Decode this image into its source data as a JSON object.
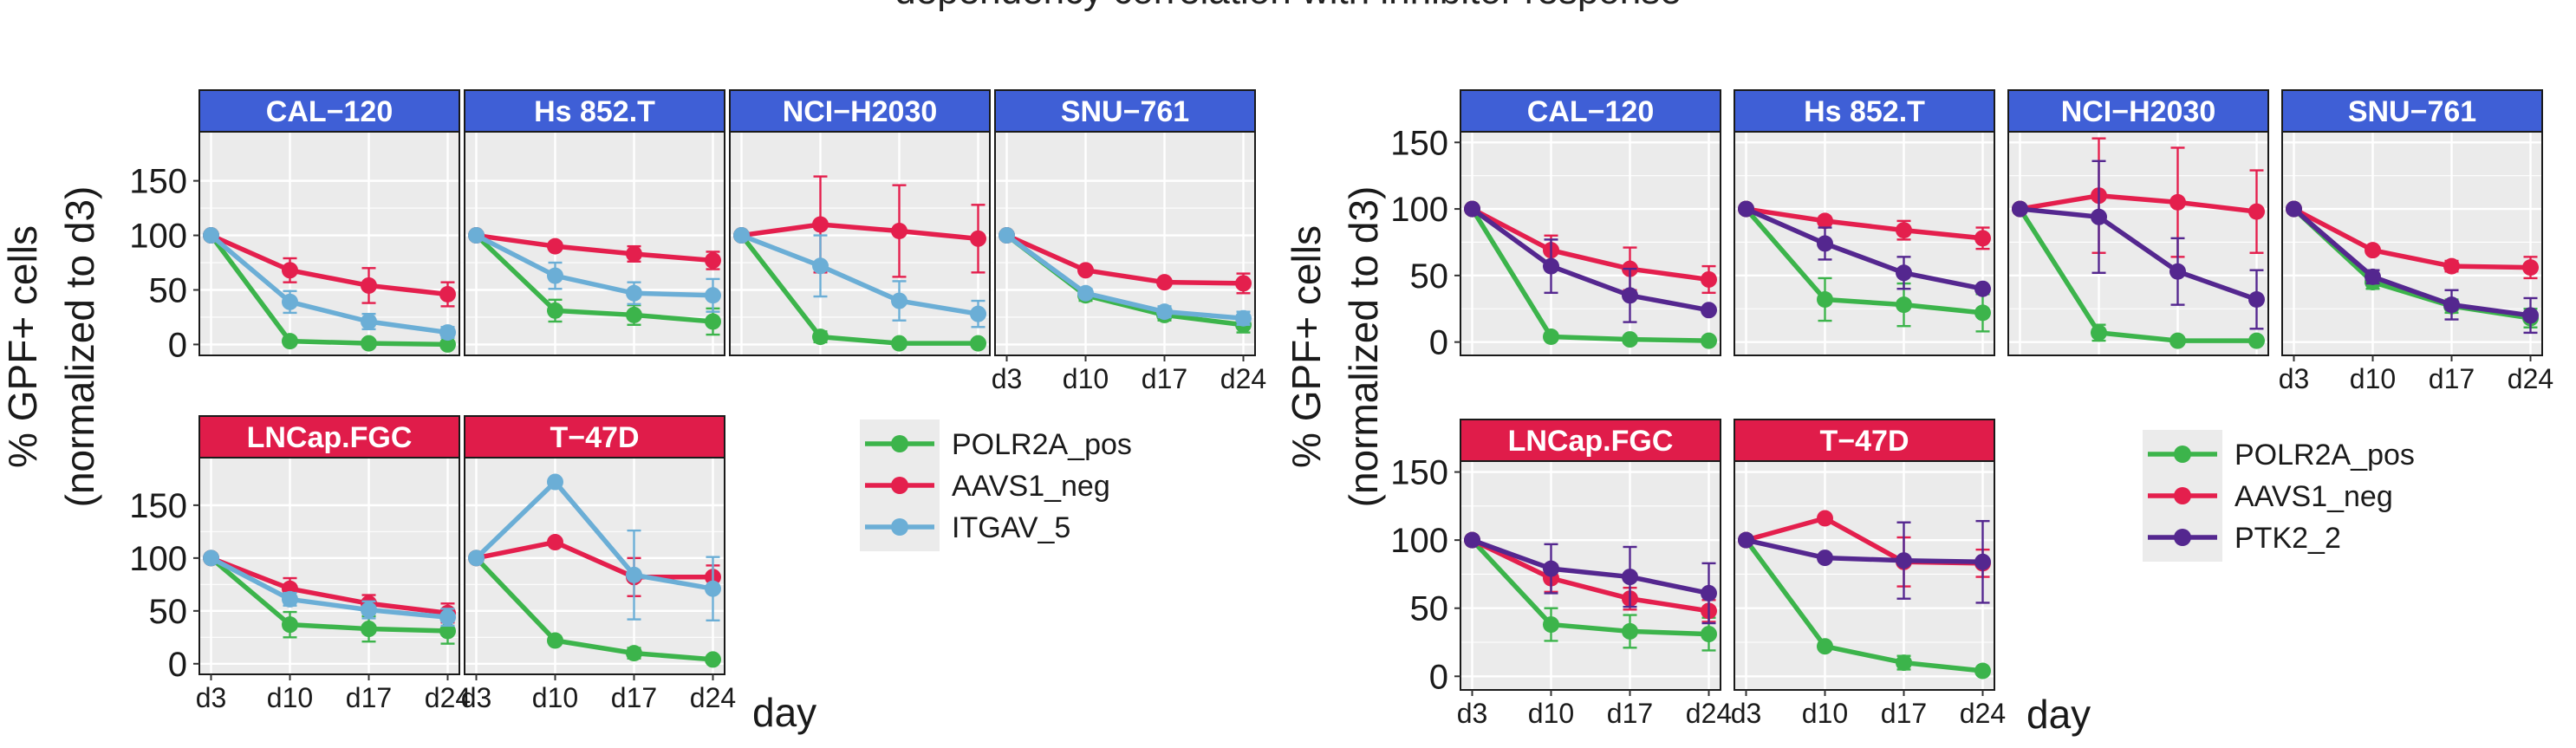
{
  "figure_title": "dependency correlation with inhibitor response",
  "colors": {
    "strip_top": "#3f5fd6",
    "strip_bottom": "#e01c4a",
    "panel_bg": "#ebebeb",
    "grid": "#ffffff",
    "POLR2A_pos": "#3cb44b",
    "AAVS1_neg": "#e41f4d",
    "ITGAV_5": "#6baed6",
    "PTK2_2": "#54278f"
  },
  "chart_data": [
    {
      "type": "line",
      "id": "left",
      "ylabel": [
        "% GPF+ cells",
        "(normalized to d3)"
      ],
      "xlabel": "day",
      "categories": [
        "d3",
        "d10",
        "d17",
        "d24"
      ],
      "y_ticks": [
        0,
        50,
        100,
        150
      ],
      "ylim": [
        -10,
        195
      ],
      "legend": {
        "placement": "right",
        "items": [
          "POLR2A_pos",
          "AAVS1_neg",
          "ITGAV_5"
        ]
      },
      "panels": [
        {
          "strip": "CAL−120",
          "row": 0,
          "series": [
            {
              "name": "POLR2A_pos",
              "values": [
                100,
                3,
                1,
                0
              ],
              "err": [
                0,
                0,
                0,
                0
              ]
            },
            {
              "name": "AAVS1_neg",
              "values": [
                100,
                68,
                54,
                46
              ],
              "err": [
                0,
                11,
                16,
                11
              ]
            },
            {
              "name": "ITGAV_5",
              "values": [
                100,
                39,
                21,
                11
              ],
              "err": [
                0,
                10,
                7,
                5
              ]
            }
          ]
        },
        {
          "strip": "Hs 852.T",
          "row": 0,
          "series": [
            {
              "name": "POLR2A_pos",
              "values": [
                100,
                31,
                27,
                21
              ],
              "err": [
                0,
                10,
                9,
                12
              ]
            },
            {
              "name": "AAVS1_neg",
              "values": [
                100,
                90,
                83,
                77
              ],
              "err": [
                0,
                0,
                7,
                8
              ]
            },
            {
              "name": "ITGAV_5",
              "values": [
                100,
                63,
                47,
                45
              ],
              "err": [
                0,
                12,
                10,
                15
              ]
            }
          ]
        },
        {
          "strip": "NCI−H2030",
          "row": 0,
          "series": [
            {
              "name": "POLR2A_pos",
              "values": [
                100,
                7,
                1,
                1
              ],
              "err": [
                0,
                5,
                0,
                0
              ]
            },
            {
              "name": "AAVS1_neg",
              "values": [
                100,
                110,
                104,
                97
              ],
              "err": [
                0,
                44,
                42,
                31
              ]
            },
            {
              "name": "ITGAV_5",
              "values": [
                100,
                72,
                40,
                28
              ],
              "err": [
                0,
                28,
                18,
                12
              ]
            }
          ]
        },
        {
          "strip": "SNU−761",
          "row": 0,
          "series": [
            {
              "name": "POLR2A_pos",
              "values": [
                100,
                45,
                27,
                18
              ],
              "err": [
                0,
                5,
                5,
                7
              ]
            },
            {
              "name": "AAVS1_neg",
              "values": [
                100,
                68,
                57,
                56
              ],
              "err": [
                0,
                0,
                3,
                9
              ]
            },
            {
              "name": "ITGAV_5",
              "values": [
                100,
                47,
                30,
                24
              ],
              "err": [
                0,
                4,
                5,
                6
              ]
            }
          ]
        },
        {
          "strip": "LNCap.FGC",
          "row": 1,
          "series": [
            {
              "name": "POLR2A_pos",
              "values": [
                100,
                37,
                33,
                31
              ],
              "err": [
                0,
                12,
                12,
                12
              ]
            },
            {
              "name": "AAVS1_neg",
              "values": [
                100,
                71,
                57,
                48
              ],
              "err": [
                0,
                10,
                8,
                9
              ]
            },
            {
              "name": "ITGAV_5",
              "values": [
                100,
                61,
                51,
                44
              ],
              "err": [
                0,
                6,
                8,
                8
              ]
            }
          ]
        },
        {
          "strip": "T−47D",
          "row": 1,
          "series": [
            {
              "name": "POLR2A_pos",
              "values": [
                100,
                22,
                10,
                4
              ],
              "err": [
                0,
                0,
                5,
                0
              ]
            },
            {
              "name": "AAVS1_neg",
              "values": [
                100,
                115,
                82,
                82
              ],
              "err": [
                0,
                0,
                18,
                11
              ]
            },
            {
              "name": "ITGAV_5",
              "values": [
                100,
                172,
                84,
                71
              ],
              "err": [
                0,
                0,
                42,
                30
              ]
            }
          ]
        }
      ]
    },
    {
      "type": "line",
      "id": "right",
      "ylabel": [
        "% GPF+ cells",
        "(normalized to d3)"
      ],
      "xlabel": "day",
      "categories": [
        "d3",
        "d10",
        "d17",
        "d24"
      ],
      "y_ticks": [
        0,
        50,
        100,
        150
      ],
      "ylim": [
        -10,
        158
      ],
      "legend": {
        "placement": "right",
        "items": [
          "POLR2A_pos",
          "AAVS1_neg",
          "PTK2_2"
        ]
      },
      "panels": [
        {
          "strip": "CAL−120",
          "row": 0,
          "series": [
            {
              "name": "POLR2A_pos",
              "values": [
                100,
                4,
                2,
                1
              ],
              "err": [
                0,
                0,
                0,
                0
              ]
            },
            {
              "name": "AAVS1_neg",
              "values": [
                100,
                69,
                55,
                47
              ],
              "err": [
                0,
                11,
                16,
                10
              ]
            },
            {
              "name": "PTK2_2",
              "values": [
                100,
                57,
                35,
                24
              ],
              "err": [
                0,
                20,
                20,
                0
              ]
            }
          ]
        },
        {
          "strip": "Hs 852.T",
          "row": 0,
          "series": [
            {
              "name": "POLR2A_pos",
              "values": [
                100,
                32,
                28,
                22
              ],
              "err": [
                0,
                16,
                16,
                14
              ]
            },
            {
              "name": "AAVS1_neg",
              "values": [
                100,
                91,
                84,
                78
              ],
              "err": [
                0,
                0,
                7,
                8
              ]
            },
            {
              "name": "PTK2_2",
              "values": [
                100,
                74,
                52,
                40
              ],
              "err": [
                0,
                12,
                12,
                0
              ]
            }
          ]
        },
        {
          "strip": "NCI−H2030",
          "row": 0,
          "series": [
            {
              "name": "POLR2A_pos",
              "values": [
                100,
                7,
                1,
                1
              ],
              "err": [
                0,
                6,
                0,
                0
              ]
            },
            {
              "name": "AAVS1_neg",
              "values": [
                100,
                110,
                105,
                98
              ],
              "err": [
                0,
                43,
                41,
                31
              ]
            },
            {
              "name": "PTK2_2",
              "values": [
                100,
                94,
                53,
                32
              ],
              "err": [
                0,
                42,
                25,
                22
              ]
            }
          ]
        },
        {
          "strip": "SNU−761",
          "row": 0,
          "series": [
            {
              "name": "POLR2A_pos",
              "values": [
                100,
                45,
                27,
                18
              ],
              "err": [
                0,
                5,
                5,
                7
              ]
            },
            {
              "name": "AAVS1_neg",
              "values": [
                100,
                69,
                57,
                56
              ],
              "err": [
                0,
                0,
                4,
                8
              ]
            },
            {
              "name": "PTK2_2",
              "values": [
                100,
                49,
                28,
                20
              ],
              "err": [
                0,
                5,
                11,
                13
              ]
            }
          ]
        },
        {
          "strip": "LNCap.FGC",
          "row": 1,
          "series": [
            {
              "name": "POLR2A_pos",
              "values": [
                100,
                38,
                33,
                31
              ],
              "err": [
                0,
                12,
                12,
                12
              ]
            },
            {
              "name": "AAVS1_neg",
              "values": [
                100,
                72,
                57,
                48
              ],
              "err": [
                0,
                10,
                8,
                8
              ]
            },
            {
              "name": "PTK2_2",
              "values": [
                100,
                79,
                73,
                61
              ],
              "err": [
                0,
                18,
                22,
                22
              ]
            }
          ]
        },
        {
          "strip": "T−47D",
          "row": 1,
          "series": [
            {
              "name": "POLR2A_pos",
              "values": [
                100,
                22,
                10,
                4
              ],
              "err": [
                0,
                0,
                5,
                0
              ]
            },
            {
              "name": "AAVS1_neg",
              "values": [
                100,
                116,
                84,
                83
              ],
              "err": [
                0,
                0,
                18,
                10
              ]
            },
            {
              "name": "PTK2_2",
              "values": [
                100,
                87,
                85,
                84
              ],
              "err": [
                0,
                0,
                28,
                30
              ]
            }
          ]
        }
      ]
    }
  ]
}
